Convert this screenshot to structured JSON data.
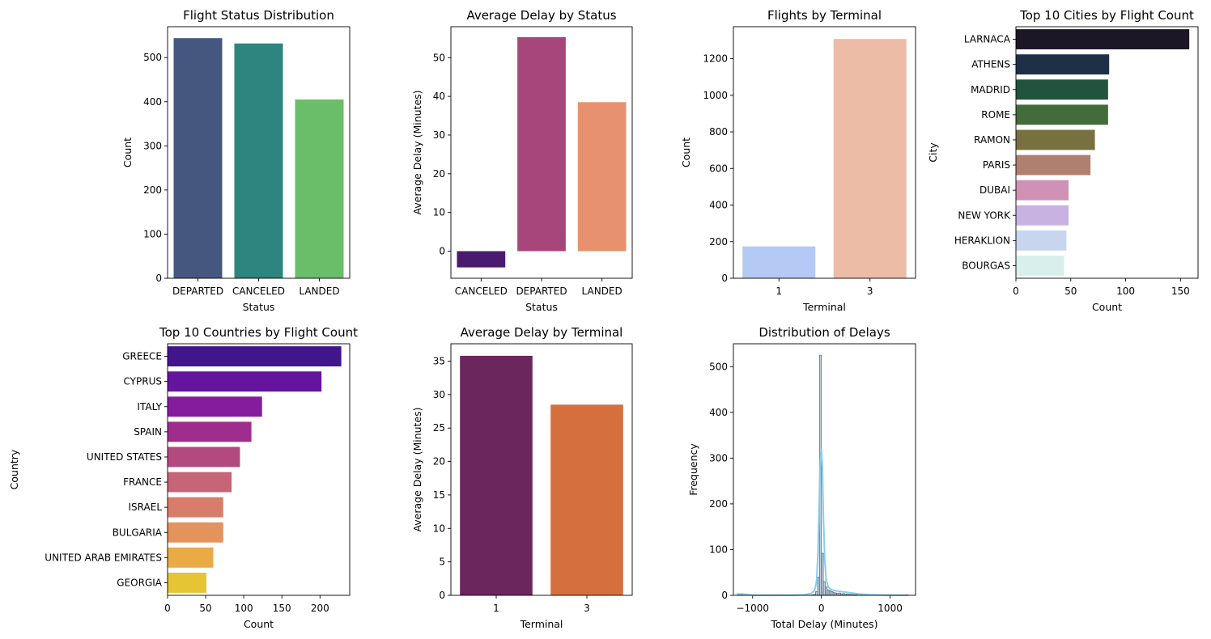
{
  "chart_data": [
    {
      "id": "status_count",
      "type": "bar",
      "orientation": "vertical",
      "title": "Flight Status Distribution",
      "xlabel": "Status",
      "ylabel": "Count",
      "categories": [
        "DEPARTED",
        "CANCELED",
        "LANDED"
      ],
      "values": [
        544,
        532,
        405
      ],
      "colors": [
        "#46577f",
        "#2e847e",
        "#6abe6a"
      ],
      "ylim": [
        0,
        570
      ],
      "yticks": [
        0,
        100,
        200,
        300,
        400,
        500
      ]
    },
    {
      "id": "delay_by_status",
      "type": "bar",
      "orientation": "vertical",
      "title": "Average Delay by Status",
      "xlabel": "Status",
      "ylabel": "Average Delay (Minutes)",
      "categories": [
        "CANCELED",
        "DEPARTED",
        "LANDED"
      ],
      "values": [
        -4.2,
        55.3,
        38.5
      ],
      "colors": [
        "#4a1a6f",
        "#a6467b",
        "#e8916f"
      ],
      "ylim": [
        -7,
        58
      ],
      "yticks": [
        0,
        10,
        20,
        30,
        40,
        50
      ]
    },
    {
      "id": "terminal_count",
      "type": "bar",
      "orientation": "vertical",
      "title": "Flights by Terminal",
      "xlabel": "Terminal",
      "ylabel": "Count",
      "categories": [
        "1",
        "3"
      ],
      "values": [
        174,
        1308
      ],
      "colors": [
        "#b4c9f4",
        "#edbca6"
      ],
      "ylim": [
        0,
        1375
      ],
      "yticks": [
        0,
        200,
        400,
        600,
        800,
        1000,
        1200
      ]
    },
    {
      "id": "top_cities",
      "type": "bar",
      "orientation": "horizontal",
      "title": "Top 10 Cities by Flight Count",
      "xlabel": "Count",
      "ylabel": "City",
      "categories": [
        "LARNACA",
        "ATHENS",
        "MADRID",
        "ROME",
        "RAMON",
        "PARIS",
        "DUBAI",
        "NEW YORK",
        "HERAKLION",
        "BOURGAS"
      ],
      "values": [
        158,
        85,
        84,
        84,
        72,
        68,
        48,
        48,
        46,
        44
      ],
      "colors": [
        "#1b1727",
        "#1e3048",
        "#21533f",
        "#436c3a",
        "#76713e",
        "#b0806f",
        "#cf91b4",
        "#c8b2e2",
        "#c8d5ef",
        "#d9efec"
      ],
      "xlim": [
        0,
        166
      ],
      "xticks": [
        0,
        50,
        100,
        150
      ]
    },
    {
      "id": "top_countries",
      "type": "bar",
      "orientation": "horizontal",
      "title": "Top 10 Countries by Flight Count",
      "xlabel": "Count",
      "ylabel": "Country",
      "categories": [
        "GREECE",
        "CYPRUS",
        "ITALY",
        "SPAIN",
        "UNITED STATES",
        "FRANCE",
        "ISRAEL",
        "BULGARIA",
        "UNITED ARAB EMIRATES",
        "GEORGIA"
      ],
      "values": [
        228,
        202,
        124,
        110,
        95,
        84,
        73,
        73,
        60,
        51
      ],
      "colors": [
        "#41168b",
        "#65159d",
        "#851c9e",
        "#9e2e8d",
        "#b24a80",
        "#c66575",
        "#d87c6c",
        "#e4935c",
        "#eaaa46",
        "#e5c534"
      ],
      "xlim": [
        0,
        239
      ],
      "xticks": [
        0,
        50,
        100,
        150,
        200
      ]
    },
    {
      "id": "delay_by_terminal",
      "type": "bar",
      "orientation": "vertical",
      "title": "Average Delay by Terminal",
      "xlabel": "Terminal",
      "ylabel": "Average Delay (Minutes)",
      "categories": [
        "1",
        "3"
      ],
      "values": [
        35.8,
        28.5
      ],
      "colors": [
        "#6b265d",
        "#d5703e"
      ],
      "ylim": [
        0,
        37.6
      ],
      "yticks": [
        0,
        5,
        10,
        15,
        20,
        25,
        30,
        35
      ]
    },
    {
      "id": "delay_distribution",
      "type": "histogram",
      "title": "Distribution of Delays",
      "xlabel": "Total Delay (Minutes)",
      "ylabel": "Frequency",
      "xlim": [
        -1280,
        1370
      ],
      "ylim": [
        0,
        550
      ],
      "xticks": [
        -1000,
        0,
        1000
      ],
      "yticks": [
        0,
        100,
        200,
        300,
        400,
        500
      ],
      "bin_width": 28,
      "bins": [
        {
          "x": -1225,
          "count": 3
        },
        {
          "x": -1197,
          "count": 2
        },
        {
          "x": -1169,
          "count": 1
        },
        {
          "x": -140,
          "count": 1
        },
        {
          "x": -112,
          "count": 2
        },
        {
          "x": -84,
          "count": 8
        },
        {
          "x": -56,
          "count": 40
        },
        {
          "x": -28,
          "count": 525
        },
        {
          "x": 0,
          "count": 92
        },
        {
          "x": 28,
          "count": 30
        },
        {
          "x": 56,
          "count": 18
        },
        {
          "x": 84,
          "count": 12
        },
        {
          "x": 112,
          "count": 10
        },
        {
          "x": 140,
          "count": 8
        },
        {
          "x": 168,
          "count": 6
        },
        {
          "x": 196,
          "count": 5
        },
        {
          "x": 224,
          "count": 4
        },
        {
          "x": 252,
          "count": 5
        },
        {
          "x": 280,
          "count": 3
        },
        {
          "x": 308,
          "count": 4
        },
        {
          "x": 336,
          "count": 2
        },
        {
          "x": 364,
          "count": 3
        },
        {
          "x": 392,
          "count": 2
        },
        {
          "x": 420,
          "count": 2
        },
        {
          "x": 448,
          "count": 3
        },
        {
          "x": 476,
          "count": 1
        },
        {
          "x": 504,
          "count": 2
        },
        {
          "x": 560,
          "count": 1
        },
        {
          "x": 644,
          "count": 1
        },
        {
          "x": 784,
          "count": 1
        },
        {
          "x": 1232,
          "count": 1
        }
      ],
      "kde": {
        "x": [
          -1230,
          -1150,
          -1000,
          -800,
          -600,
          -400,
          -250,
          -150,
          -100,
          -70,
          -50,
          -30,
          -15,
          0,
          15,
          30,
          50,
          70,
          100,
          150,
          200,
          250,
          300,
          350,
          400,
          450,
          500,
          550,
          600,
          700,
          800,
          900,
          1000,
          1100,
          1250
        ],
        "y": [
          3,
          3,
          0.6,
          0.2,
          0.3,
          0.5,
          1,
          4,
          10,
          30,
          90,
          210,
          300,
          320,
          280,
          170,
          75,
          34,
          18,
          12,
          10,
          9,
          8,
          7,
          6,
          5,
          4,
          3,
          2.5,
          1.5,
          1,
          0.6,
          0.4,
          0.3,
          0.5
        ]
      },
      "bar_color": "#8fa9c2",
      "kde_color": "#87ceeb"
    }
  ]
}
